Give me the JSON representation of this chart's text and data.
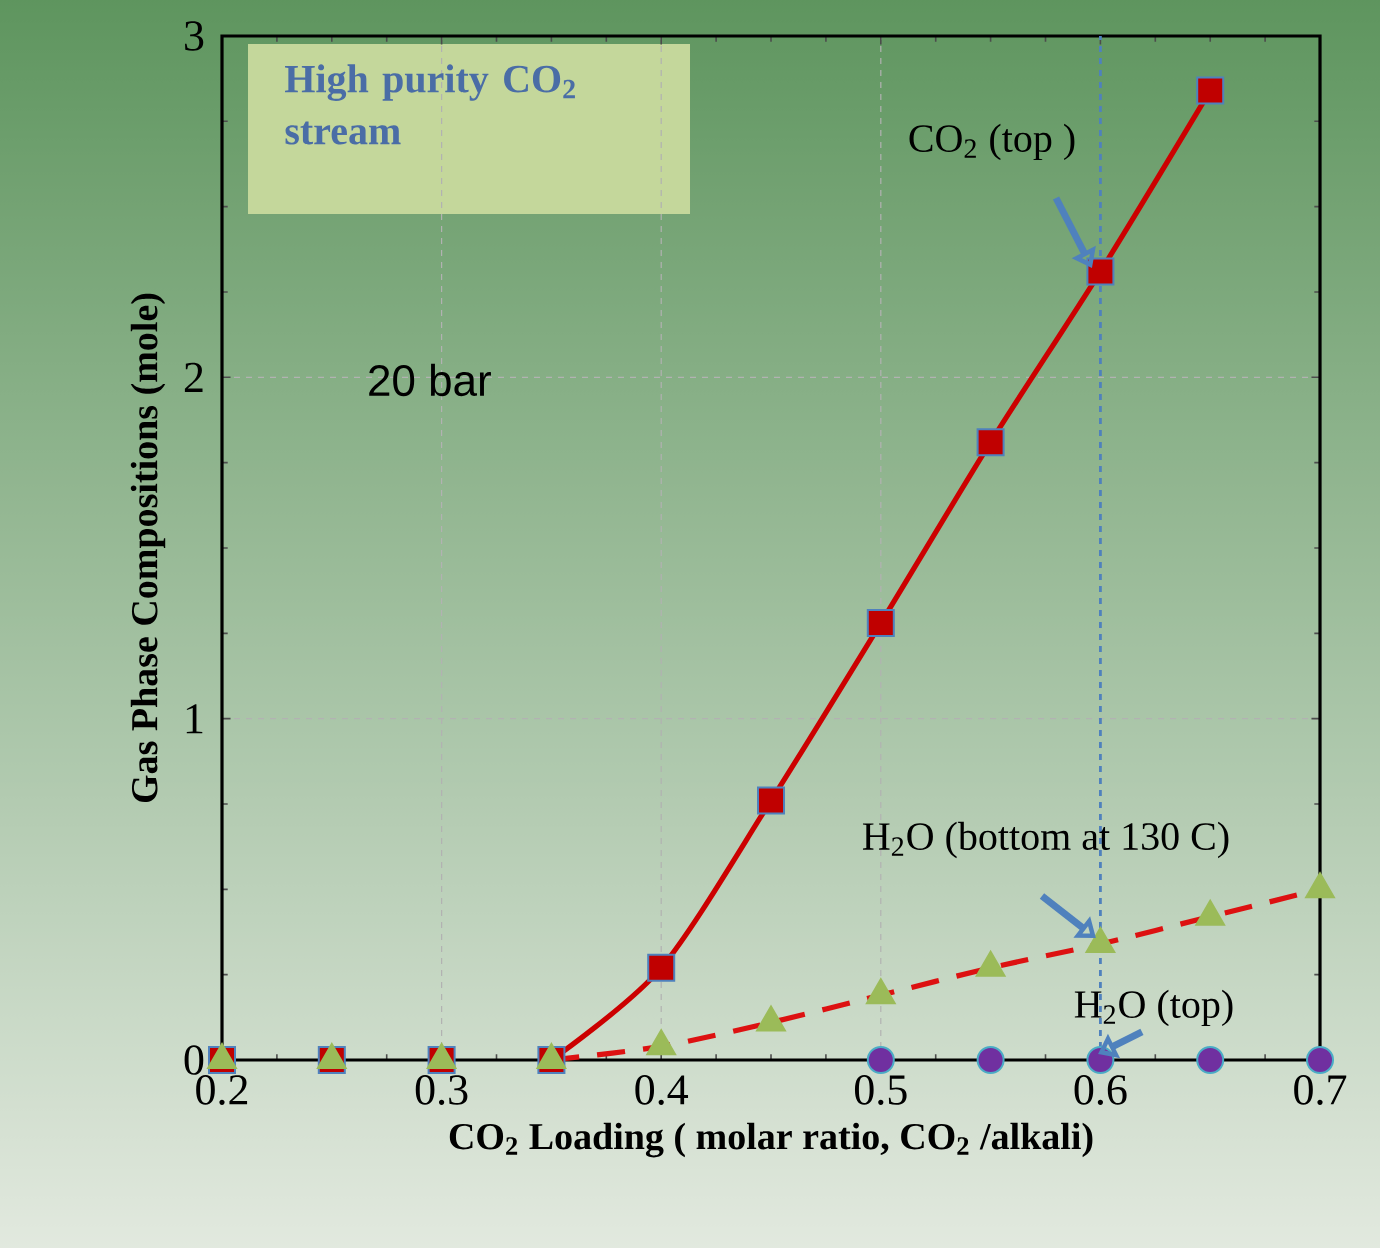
{
  "chart_data": {
    "type": "line",
    "xlabel": "CO$_{2}$ Loading ( molar ratio, CO$_{2}$ /alkali)",
    "ylabel": "Gas Phase Compositions (mole)",
    "xlim": [
      0.2,
      0.7
    ],
    "xticks": [
      0.2,
      0.3,
      0.4,
      0.5,
      0.6,
      0.7
    ],
    "ylim": [
      0,
      3
    ],
    "yticks": [
      0,
      1,
      2,
      3
    ],
    "grid": true,
    "series": [
      {
        "type": "line",
        "color": "#cc0000",
        "line_style": "solid",
        "marker": "none",
        "x": [
          0.35,
          0.4,
          0.45,
          0.5,
          0.55,
          0.6,
          0.65
        ],
        "values": [
          0,
          0.27,
          0.76,
          1.28,
          1.81,
          2.31,
          2.84
        ]
      },
      {
        "type": "line",
        "color": "#dd1111",
        "line_style": "dashed",
        "marker": "none",
        "x": [
          0.35,
          0.4,
          0.45,
          0.5,
          0.55,
          0.6,
          0.65,
          0.7
        ],
        "values": [
          0,
          0.04,
          0.11,
          0.19,
          0.27,
          0.34,
          0.42,
          0.5
        ]
      },
      {
        "type": "scatter",
        "color": "#c00000",
        "marker": "square",
        "x": [
          0.2,
          0.25,
          0.3,
          0.35,
          0.4,
          0.45,
          0.5,
          0.55,
          0.6,
          0.65
        ],
        "values": [
          0,
          0,
          0,
          0,
          0.27,
          0.76,
          1.28,
          1.81,
          2.31,
          2.84
        ]
      },
      {
        "type": "scatter",
        "color": "#9bbb59",
        "marker": "triangle",
        "x": [
          0.2,
          0.25,
          0.3,
          0.35,
          0.4,
          0.45,
          0.5,
          0.55,
          0.6,
          0.65,
          0.7
        ],
        "values": [
          0,
          0,
          0,
          0,
          0.04,
          0.11,
          0.19,
          0.27,
          0.34,
          0.42,
          0.5
        ]
      },
      {
        "type": "scatter",
        "color": "#7030a0",
        "marker": "circle",
        "x": [
          0.5,
          0.55,
          0.6,
          0.65,
          0.7
        ],
        "values": [
          0,
          0,
          0,
          0,
          0
        ]
      }
    ],
    "ref_lines": [
      {
        "axis": "x",
        "value": 0.6,
        "color": "#4f81bd",
        "line_style": "dashed"
      }
    ],
    "annotations": [
      "High purity CO$_{2}$ stream",
      "20 bar",
      "CO$_{2}$ (top )",
      "H$_{2}$O (bottom at 130 C)",
      "H$_{2}$O (top)"
    ]
  }
}
